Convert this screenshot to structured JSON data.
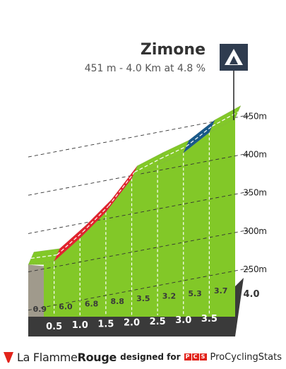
{
  "climb": {
    "name": "Zimone",
    "stats": "451 m - 4.0 Km at 4.8 %",
    "summit_icon": "mountain-summit-icon"
  },
  "chart_data": {
    "type": "area",
    "title": "Zimone",
    "subtitle": "451 m - 4.0 Km at 4.8 %",
    "x_unit": "km",
    "y_unit": "m",
    "x": [
      0,
      0.5,
      1.0,
      1.5,
      2.0,
      2.5,
      3.0,
      3.5,
      4.0
    ],
    "elevation": [
      258,
      262.5,
      292.5,
      326.5,
      370.5,
      388,
      404,
      430.5,
      449
    ],
    "segment_gradients": [
      "0.9",
      "6.0",
      "6.8",
      "8.8",
      "3.5",
      "3.2",
      "5.3",
      "3.7"
    ],
    "km_labels": [
      "0.5",
      "1.0",
      "1.5",
      "2.0",
      "2.5",
      "3.0",
      "3.5"
    ],
    "end_label": "4.0",
    "y_ticks": [
      250,
      300,
      350,
      400,
      450
    ],
    "y_tick_labels": [
      "250m",
      "300m",
      "350m",
      "400m",
      "450m"
    ],
    "ylim": [
      230,
      460
    ],
    "gradient_colors": {
      "easy": "#82c828",
      "steep": "#e2232d",
      "medium": "#1a5a8a"
    },
    "segment_colors": [
      "easy",
      "steep",
      "steep",
      "steep",
      "easy",
      "easy",
      "medium",
      "easy"
    ],
    "colors": {
      "base_bar": "#3a3a3a",
      "start_wall": "#a09a8c",
      "gridline": "#333333"
    }
  },
  "footer": {
    "brand_prefix": "La Flamme",
    "brand_suffix": "Rouge",
    "designed_for": "designed for",
    "pcs_letters": [
      "P",
      "C",
      "S"
    ],
    "pcs_name": "ProCyclingStats",
    "brand_color": "#e2231a"
  }
}
